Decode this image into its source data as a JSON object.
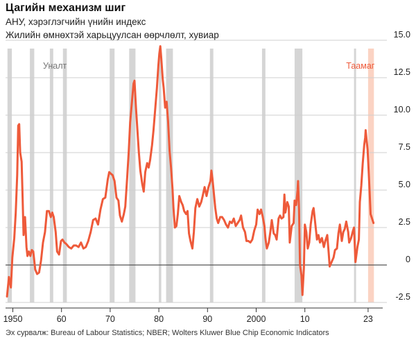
{
  "header": {
    "title": "Цагийн механизм шиг",
    "subtitle1": "АНУ, хэрэглэгчийн үнийн индекс",
    "subtitle2": "Жилийн өмнөхтэй харьцуулсан өөрчлөлт, хувиар"
  },
  "footer": {
    "source": "Эх сурвалж: Bureau of Labour Statistics; NBER; Wolters Kluwer Blue Chip Economic Indicators"
  },
  "colors": {
    "line": "#ee5a3a",
    "recession": "#d5d5d5",
    "forecast_band": "#fbd3c3",
    "recession_label": "#777777",
    "forecast_label": "#ee5a3a",
    "grid": "#cfcfcf"
  },
  "chart_data": {
    "type": "line",
    "title": "Цагийн механизм шиг",
    "subtitle": "АНУ, хэрэглэгчийн үнийн индекс",
    "ylabel": "Жилийн өмнөхтэй харьцуулсан өөрчлөлт, хувиар",
    "xlabel": "",
    "xlim": [
      1948.5,
      2026
    ],
    "ylim": [
      -2.5,
      15.0
    ],
    "y_ticks": [
      15.0,
      12.5,
      10.0,
      7.5,
      5.0,
      2.5,
      0,
      -2.5
    ],
    "y_tick_labels": [
      "15.0",
      "12.5",
      "10.0",
      "7.5",
      "5.0",
      "2.5",
      "0",
      "-2.5"
    ],
    "x_ticks": [
      1950,
      1960,
      1970,
      1980,
      1990,
      2000,
      2010,
      2023
    ],
    "x_tick_labels": [
      "1950",
      "60",
      "70",
      "80",
      "90",
      "2000",
      "10",
      "23"
    ],
    "grid": "horizontal",
    "annotations": [
      {
        "text": "Уналт",
        "kind": "recession"
      },
      {
        "text": "Таамаг",
        "kind": "forecast"
      }
    ],
    "recessions": [
      [
        1948.9,
        1949.8
      ],
      [
        1953.5,
        1954.4
      ],
      [
        1957.6,
        1958.3
      ],
      [
        1960.3,
        1961.1
      ],
      [
        1969.9,
        1970.9
      ],
      [
        1973.9,
        1975.2
      ],
      [
        1980.0,
        1980.5
      ],
      [
        1981.5,
        1982.9
      ],
      [
        1990.5,
        1991.2
      ],
      [
        2001.2,
        2001.9
      ],
      [
        2007.9,
        2009.5
      ],
      [
        2020.1,
        2020.4
      ]
    ],
    "forecast_band": [
      2023.0,
      2024.2
    ],
    "series": [
      {
        "values": [
          [
            1948.8,
            -2.1
          ],
          [
            1949.2,
            -0.8
          ],
          [
            1949.6,
            -1.5
          ],
          [
            1949.9,
            0.5
          ],
          [
            1950.3,
            1.8
          ],
          [
            1950.6,
            3.5
          ],
          [
            1950.9,
            6.0
          ],
          [
            1951.1,
            9.3
          ],
          [
            1951.3,
            9.4
          ],
          [
            1951.5,
            7.5
          ],
          [
            1951.8,
            6.9
          ],
          [
            1952.0,
            4.5
          ],
          [
            1952.2,
            2.0
          ],
          [
            1952.5,
            3.2
          ],
          [
            1952.8,
            1.2
          ],
          [
            1953.0,
            0.6
          ],
          [
            1953.3,
            0.9
          ],
          [
            1953.6,
            0.6
          ],
          [
            1953.9,
            1.0
          ],
          [
            1954.2,
            0.9
          ],
          [
            1954.6,
            -0.3
          ],
          [
            1955.0,
            -0.6
          ],
          [
            1955.4,
            -0.5
          ],
          [
            1955.8,
            0.3
          ],
          [
            1956.2,
            1.5
          ],
          [
            1956.6,
            2.2
          ],
          [
            1957.0,
            3.6
          ],
          [
            1957.4,
            3.6
          ],
          [
            1957.8,
            3.2
          ],
          [
            1958.1,
            3.5
          ],
          [
            1958.4,
            3.2
          ],
          [
            1958.8,
            2.2
          ],
          [
            1959.1,
            0.9
          ],
          [
            1959.5,
            0.7
          ],
          [
            1959.9,
            1.6
          ],
          [
            1960.2,
            1.7
          ],
          [
            1960.6,
            1.5
          ],
          [
            1961.0,
            1.4
          ],
          [
            1961.5,
            1.2
          ],
          [
            1962.0,
            1.1
          ],
          [
            1962.5,
            1.3
          ],
          [
            1963.0,
            1.3
          ],
          [
            1963.5,
            1.2
          ],
          [
            1964.0,
            1.5
          ],
          [
            1964.5,
            1.1
          ],
          [
            1965.0,
            1.2
          ],
          [
            1965.5,
            1.6
          ],
          [
            1966.0,
            2.2
          ],
          [
            1966.5,
            3.0
          ],
          [
            1967.0,
            3.1
          ],
          [
            1967.5,
            2.7
          ],
          [
            1968.0,
            3.7
          ],
          [
            1968.5,
            4.4
          ],
          [
            1969.0,
            4.5
          ],
          [
            1969.5,
            5.7
          ],
          [
            1969.8,
            6.2
          ],
          [
            1970.1,
            6.1
          ],
          [
            1970.5,
            6.0
          ],
          [
            1970.9,
            5.6
          ],
          [
            1971.3,
            4.5
          ],
          [
            1971.7,
            4.3
          ],
          [
            1972.0,
            3.3
          ],
          [
            1972.4,
            2.9
          ],
          [
            1972.8,
            3.4
          ],
          [
            1973.1,
            3.9
          ],
          [
            1973.5,
            5.9
          ],
          [
            1973.8,
            7.5
          ],
          [
            1974.1,
            9.5
          ],
          [
            1974.5,
            11.0
          ],
          [
            1974.8,
            12.1
          ],
          [
            1975.0,
            12.3
          ],
          [
            1975.3,
            10.5
          ],
          [
            1975.6,
            9.0
          ],
          [
            1975.9,
            7.5
          ],
          [
            1976.2,
            6.3
          ],
          [
            1976.6,
            5.4
          ],
          [
            1976.9,
            4.9
          ],
          [
            1977.2,
            6.2
          ],
          [
            1977.6,
            6.8
          ],
          [
            1977.9,
            6.5
          ],
          [
            1978.2,
            7.0
          ],
          [
            1978.6,
            8.0
          ],
          [
            1978.9,
            9.0
          ],
          [
            1979.2,
            10.2
          ],
          [
            1979.6,
            11.8
          ],
          [
            1979.9,
            13.3
          ],
          [
            1980.1,
            14.1
          ],
          [
            1980.3,
            14.6
          ],
          [
            1980.5,
            13.8
          ],
          [
            1980.8,
            12.4
          ],
          [
            1981.0,
            11.8
          ],
          [
            1981.3,
            10.5
          ],
          [
            1981.6,
            10.9
          ],
          [
            1981.9,
            9.6
          ],
          [
            1982.2,
            7.6
          ],
          [
            1982.5,
            6.5
          ],
          [
            1982.8,
            5.1
          ],
          [
            1983.0,
            3.8
          ],
          [
            1983.3,
            2.5
          ],
          [
            1983.6,
            2.6
          ],
          [
            1983.9,
            3.4
          ],
          [
            1984.2,
            4.6
          ],
          [
            1984.6,
            4.2
          ],
          [
            1984.9,
            4.0
          ],
          [
            1985.2,
            3.6
          ],
          [
            1985.6,
            3.4
          ],
          [
            1985.9,
            3.6
          ],
          [
            1986.2,
            2.1
          ],
          [
            1986.5,
            1.6
          ],
          [
            1986.9,
            1.1
          ],
          [
            1987.2,
            2.2
          ],
          [
            1987.5,
            3.8
          ],
          [
            1987.9,
            4.4
          ],
          [
            1988.3,
            3.9
          ],
          [
            1988.7,
            4.2
          ],
          [
            1989.0,
            4.6
          ],
          [
            1989.4,
            5.2
          ],
          [
            1989.8,
            4.6
          ],
          [
            1990.2,
            5.2
          ],
          [
            1990.6,
            5.6
          ],
          [
            1990.8,
            6.3
          ],
          [
            1991.0,
            5.8
          ],
          [
            1991.3,
            4.8
          ],
          [
            1991.6,
            3.8
          ],
          [
            1991.9,
            3.1
          ],
          [
            1992.2,
            2.8
          ],
          [
            1992.6,
            3.2
          ],
          [
            1993.0,
            3.2
          ],
          [
            1993.4,
            3.0
          ],
          [
            1993.8,
            2.7
          ],
          [
            1994.2,
            2.5
          ],
          [
            1994.6,
            2.9
          ],
          [
            1995.0,
            2.8
          ],
          [
            1995.4,
            3.1
          ],
          [
            1995.8,
            2.6
          ],
          [
            1996.2,
            2.8
          ],
          [
            1996.6,
            3.0
          ],
          [
            1996.9,
            3.3
          ],
          [
            1997.3,
            2.5
          ],
          [
            1997.7,
            2.2
          ],
          [
            1998.0,
            1.6
          ],
          [
            1998.4,
            1.6
          ],
          [
            1998.8,
            1.5
          ],
          [
            1999.2,
            1.7
          ],
          [
            1999.6,
            2.3
          ],
          [
            2000.0,
            2.7
          ],
          [
            2000.3,
            3.7
          ],
          [
            2000.7,
            3.4
          ],
          [
            2001.0,
            3.7
          ],
          [
            2001.3,
            3.3
          ],
          [
            2001.7,
            2.6
          ],
          [
            2001.9,
            1.8
          ],
          [
            2002.2,
            1.1
          ],
          [
            2002.6,
            1.5
          ],
          [
            2002.9,
            2.2
          ],
          [
            2003.2,
            3.0
          ],
          [
            2003.6,
            2.1
          ],
          [
            2003.9,
            2.0
          ],
          [
            2004.2,
            1.7
          ],
          [
            2004.6,
            3.1
          ],
          [
            2004.9,
            3.3
          ],
          [
            2005.2,
            3.1
          ],
          [
            2005.6,
            3.2
          ],
          [
            2005.8,
            4.7
          ],
          [
            2006.0,
            3.5
          ],
          [
            2006.4,
            4.2
          ],
          [
            2006.7,
            3.9
          ],
          [
            2006.9,
            1.5
          ],
          [
            2007.3,
            2.6
          ],
          [
            2007.7,
            2.8
          ],
          [
            2007.9,
            4.3
          ],
          [
            2008.2,
            4.0
          ],
          [
            2008.5,
            5.0
          ],
          [
            2008.6,
            5.6
          ],
          [
            2008.8,
            3.7
          ],
          [
            2009.0,
            0.0
          ],
          [
            2009.3,
            -0.7
          ],
          [
            2009.5,
            -2.0
          ],
          [
            2009.8,
            -0.2
          ],
          [
            2010.0,
            2.7
          ],
          [
            2010.3,
            2.2
          ],
          [
            2010.6,
            1.1
          ],
          [
            2010.9,
            1.5
          ],
          [
            2011.2,
            2.7
          ],
          [
            2011.6,
            3.6
          ],
          [
            2011.8,
            3.8
          ],
          [
            2012.1,
            2.9
          ],
          [
            2012.5,
            1.7
          ],
          [
            2012.8,
            2.0
          ],
          [
            2013.1,
            1.5
          ],
          [
            2013.5,
            1.8
          ],
          [
            2013.9,
            1.2
          ],
          [
            2014.2,
            1.6
          ],
          [
            2014.6,
            2.0
          ],
          [
            2014.9,
            0.8
          ],
          [
            2015.1,
            -0.1
          ],
          [
            2015.5,
            0.2
          ],
          [
            2015.9,
            0.5
          ],
          [
            2016.2,
            1.0
          ],
          [
            2016.6,
            1.1
          ],
          [
            2016.9,
            2.1
          ],
          [
            2017.2,
            2.7
          ],
          [
            2017.6,
            1.6
          ],
          [
            2017.9,
            2.2
          ],
          [
            2018.2,
            2.4
          ],
          [
            2018.5,
            2.9
          ],
          [
            2018.9,
            2.2
          ],
          [
            2019.1,
            1.5
          ],
          [
            2019.5,
            1.8
          ],
          [
            2019.9,
            2.3
          ],
          [
            2020.1,
            2.5
          ],
          [
            2020.4,
            0.2
          ],
          [
            2020.8,
            1.2
          ],
          [
            2021.1,
            1.7
          ],
          [
            2021.3,
            4.2
          ],
          [
            2021.6,
            5.3
          ],
          [
            2021.9,
            6.8
          ],
          [
            2022.2,
            8.0
          ],
          [
            2022.4,
            8.5
          ],
          [
            2022.5,
            9.0
          ],
          [
            2022.7,
            8.3
          ],
          [
            2022.9,
            7.7
          ],
          [
            2023.1,
            6.4
          ],
          [
            2023.3,
            5.0
          ],
          [
            2023.5,
            3.4
          ],
          [
            2023.7,
            3.2
          ],
          [
            2023.9,
            3.0
          ],
          [
            2024.1,
            2.8
          ]
        ]
      }
    ]
  }
}
